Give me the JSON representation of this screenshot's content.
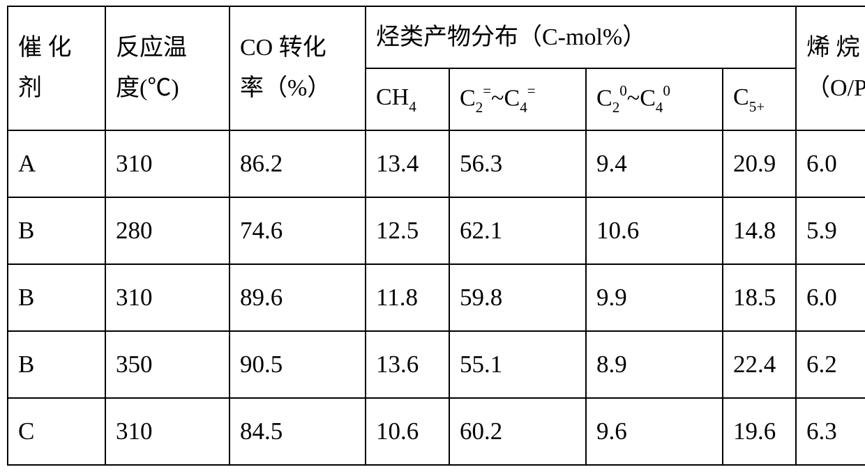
{
  "table": {
    "border_color": "#000000",
    "background_color": "#ffffff",
    "text_color": "#000000",
    "font_family": "SimSun",
    "header": {
      "catalyst_l1": "催 化",
      "catalyst_l2": "剂",
      "temperature_l1": "反应温",
      "temperature_l2": "度(℃)",
      "co_conv_l1": "CO 转化",
      "co_conv_l2": "率（%）",
      "dist_title": "烃类产物分布（C-mol%）",
      "ratio_l1": "烯 烷 比",
      "ratio_l2": "（O/P）",
      "sub": {
        "ch4": "CH",
        "ch4_sub": "4",
        "c24eq_lhs": "C",
        "c24eq_lhs_sub": "2",
        "c24eq_lhs_sup": "=",
        "tilde": "~",
        "c24eq_rhs": "C",
        "c24eq_rhs_sub": "4",
        "c24eq_rhs_sup": "=",
        "c240_lhs": "C",
        "c240_lhs_sub": "2",
        "c240_lhs_sup": "0",
        "c240_rhs": "C",
        "c240_rhs_sub": "4",
        "c240_rhs_sup": "0",
        "c5p": "C",
        "c5p_sub": "5+"
      }
    },
    "rows": [
      {
        "catalyst": "A",
        "temp": "310",
        "co": "86.2",
        "ch4": "13.4",
        "c24eq": "56.3",
        "c240": "9.4",
        "c5p": "20.9",
        "ratio": "6.0"
      },
      {
        "catalyst": "B",
        "temp": "280",
        "co": "74.6",
        "ch4": "12.5",
        "c24eq": "62.1",
        "c240": "10.6",
        "c5p": "14.8",
        "ratio": "5.9"
      },
      {
        "catalyst": "B",
        "temp": "310",
        "co": "89.6",
        "ch4": "11.8",
        "c24eq": "59.8",
        "c240": "9.9",
        "c5p": "18.5",
        "ratio": "6.0"
      },
      {
        "catalyst": "B",
        "temp": "350",
        "co": "90.5",
        "ch4": "13.6",
        "c24eq": "55.1",
        "c240": "8.9",
        "c5p": "22.4",
        "ratio": "6.2"
      },
      {
        "catalyst": "C",
        "temp": "310",
        "co": "84.5",
        "ch4": "10.6",
        "c24eq": "60.2",
        "c240": "9.6",
        "c5p": "19.6",
        "ratio": "6.3"
      }
    ]
  }
}
